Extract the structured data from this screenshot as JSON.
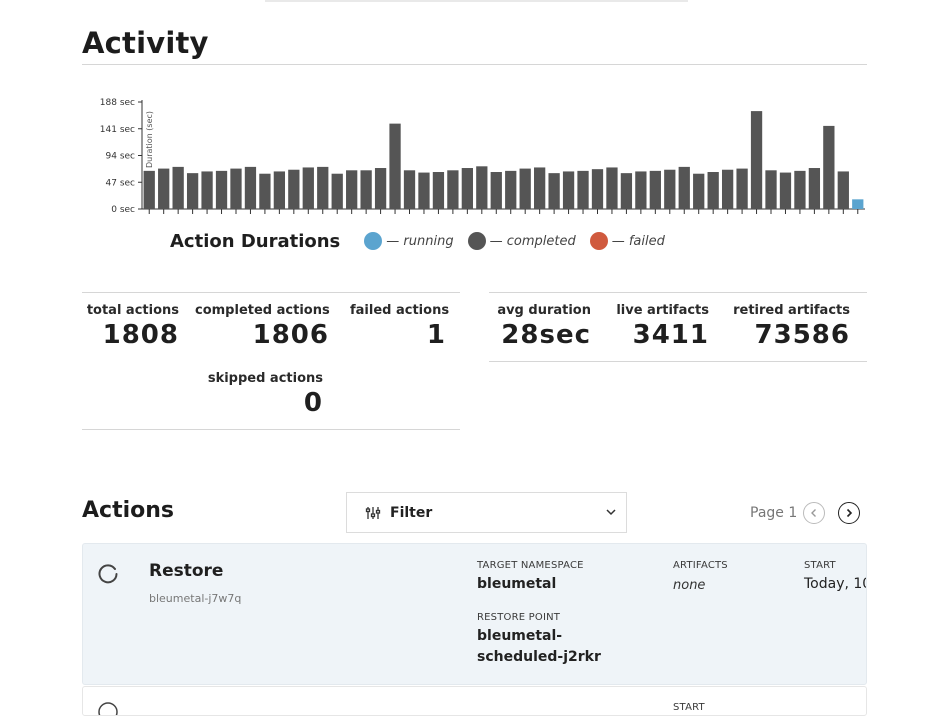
{
  "activity": {
    "title": "Activity"
  },
  "chart_data": {
    "type": "bar",
    "title": "Action Durations",
    "ylabel": "Duration (sec)",
    "yticks": [
      "188 sec",
      "141 sec",
      "94 sec",
      "47 sec",
      "0 sec"
    ],
    "ylim": [
      0,
      188
    ],
    "grid": false,
    "legend_position": "bottom",
    "series_colors": {
      "running": "#5ba4cf",
      "completed": "#555555",
      "failed": "#d05a3e"
    },
    "legend": [
      {
        "key": "running",
        "label": "— running",
        "color": "#5ba4cf"
      },
      {
        "key": "completed",
        "label": "— completed",
        "color": "#555555"
      },
      {
        "key": "failed",
        "label": "— failed",
        "color": "#d05a3e"
      }
    ],
    "values": [
      67,
      71,
      74,
      63,
      66,
      67,
      71,
      74,
      62,
      66,
      69,
      73,
      74,
      62,
      68,
      68,
      72,
      150,
      68,
      64,
      65,
      68,
      72,
      75,
      65,
      67,
      71,
      73,
      63,
      66,
      67,
      70,
      73,
      63,
      66,
      67,
      69,
      74,
      62,
      65,
      69,
      71,
      172,
      68,
      64,
      67,
      72,
      146,
      66,
      17
    ],
    "statuses": [
      "completed",
      "completed",
      "completed",
      "completed",
      "completed",
      "completed",
      "completed",
      "completed",
      "completed",
      "completed",
      "completed",
      "completed",
      "completed",
      "completed",
      "completed",
      "completed",
      "completed",
      "completed",
      "completed",
      "completed",
      "completed",
      "completed",
      "completed",
      "completed",
      "completed",
      "completed",
      "completed",
      "completed",
      "completed",
      "completed",
      "completed",
      "completed",
      "completed",
      "completed",
      "completed",
      "completed",
      "completed",
      "completed",
      "completed",
      "completed",
      "completed",
      "completed",
      "completed",
      "completed",
      "completed",
      "completed",
      "completed",
      "completed",
      "completed",
      "running"
    ]
  },
  "stats": {
    "total_actions": {
      "label": "total actions",
      "value": "1808"
    },
    "completed_actions": {
      "label": "completed actions",
      "value": "1806"
    },
    "failed_actions": {
      "label": "failed actions",
      "value": "1"
    },
    "skipped_actions": {
      "label": "skipped actions",
      "value": "0"
    },
    "avg_duration": {
      "label": "avg duration",
      "value": "28sec"
    },
    "live_artifacts": {
      "label": "live artifacts",
      "value": "3411"
    },
    "retired_artifacts": {
      "label": "retired artifacts",
      "value": "73586"
    }
  },
  "actions": {
    "title": "Actions",
    "filter_label": "Filter",
    "page_label": "Page 1",
    "items": [
      {
        "name": "Restore",
        "id": "bleumetal-j7w7q",
        "target_namespace_label": "TARGET NAMESPACE",
        "target_namespace": "bleumetal",
        "restore_point_label": "RESTORE POINT",
        "restore_point_line1": "bleumetal-",
        "restore_point_line2": "scheduled-j2rkr",
        "artifacts_label": "ARTIFACTS",
        "artifacts": "none",
        "start_label": "START",
        "start": "Today, 10"
      },
      {
        "start_label": "START"
      }
    ]
  }
}
